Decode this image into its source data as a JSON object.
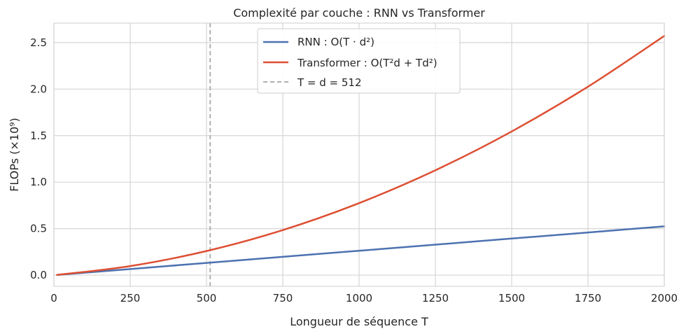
{
  "chart_data": {
    "type": "line",
    "title": "Complexité par couche : RNN vs Transformer",
    "xlabel": "Longueur de séquence T",
    "ylabel": "FLOPs (×10⁹)",
    "xlim": [
      0,
      2000
    ],
    "ylim": [
      -0.12,
      2.71
    ],
    "xticks": [
      0,
      250,
      500,
      750,
      1000,
      1250,
      1500,
      1750,
      2000
    ],
    "yticks": [
      0.0,
      0.5,
      1.0,
      1.5,
      2.0,
      2.5
    ],
    "xtick_labels": [
      "0",
      "250",
      "500",
      "750",
      "1000",
      "1250",
      "1500",
      "1750",
      "2000"
    ],
    "ytick_labels": [
      "0.0",
      "0.5",
      "1.0",
      "1.5",
      "2.0",
      "2.5"
    ],
    "grid": true,
    "legend_position": "top-center",
    "series": [
      {
        "name": "RNN : O(T · d²)",
        "color": "#4c72b0",
        "style": "solid",
        "x": [
          10,
          250,
          500,
          750,
          1000,
          1250,
          1500,
          1750,
          2000
        ],
        "values": [
          0.0026,
          0.0655,
          0.1311,
          0.1966,
          0.2621,
          0.3277,
          0.3932,
          0.4588,
          0.5243
        ]
      },
      {
        "name": "Transformer : O(T²d + Td²)",
        "color": "#dd4f33",
        "style": "solid",
        "x": [
          10,
          250,
          500,
          750,
          1000,
          1250,
          1500,
          1750,
          2000
        ],
        "values": [
          0.0027,
          0.0975,
          0.2591,
          0.4846,
          0.7743,
          1.1277,
          1.5452,
          2.0268,
          2.5724
        ]
      },
      {
        "name": "T = d = 512",
        "color": "#b0b0b0",
        "style": "dashed",
        "vline_x": 512
      }
    ]
  }
}
